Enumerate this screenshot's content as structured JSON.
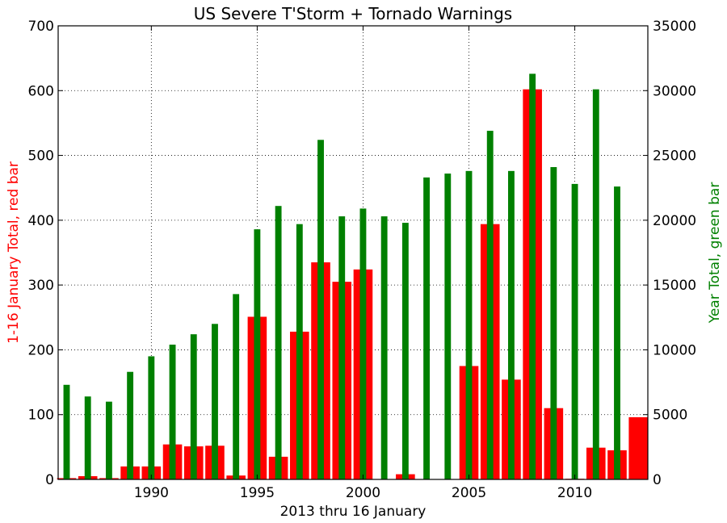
{
  "chart_data": {
    "type": "bar",
    "title": "US Severe T'Storm + Tornado Warnings",
    "xlabel": "2013 thru 16 January",
    "ylabel_left": "1-16 January Total, red bar",
    "ylabel_right": "Year Total, green bar",
    "x": [
      1986,
      1987,
      1988,
      1989,
      1990,
      1991,
      1992,
      1993,
      1994,
      1995,
      1996,
      1997,
      1998,
      1999,
      2000,
      2001,
      2002,
      2003,
      2004,
      2005,
      2006,
      2007,
      2008,
      2009,
      2010,
      2011,
      2012,
      2013
    ],
    "xlim": [
      1985.6,
      2013.45
    ],
    "ylim_left": [
      0,
      700
    ],
    "ylim_right": [
      0,
      35000
    ],
    "xticks": [
      1990,
      1995,
      2000,
      2005,
      2010
    ],
    "yticks_left": [
      0,
      100,
      200,
      300,
      400,
      500,
      600,
      700
    ],
    "yticks_right": [
      0,
      5000,
      10000,
      15000,
      20000,
      25000,
      30000,
      35000
    ],
    "grid": true,
    "series": [
      {
        "name": "1-16 January Total",
        "axis": "left",
        "color": "#ff0000",
        "values": [
          2,
          5,
          2,
          20,
          20,
          54,
          51,
          52,
          6,
          251,
          35,
          228,
          335,
          305,
          324,
          0,
          8,
          0,
          0,
          175,
          394,
          154,
          602,
          110,
          1,
          49,
          45,
          96
        ]
      },
      {
        "name": "Year Total",
        "axis": "right",
        "color": "#008000",
        "values": [
          7300,
          6400,
          6000,
          8300,
          9500,
          10400,
          11200,
          12000,
          14300,
          19300,
          21100,
          19700,
          26200,
          20300,
          20900,
          20300,
          19800,
          23300,
          23600,
          23800,
          26900,
          23800,
          31300,
          24100,
          22800,
          30100,
          22600,
          0
        ]
      }
    ]
  },
  "colors": {
    "left_axis_label": "#ff0000",
    "right_axis_label": "#008000"
  }
}
